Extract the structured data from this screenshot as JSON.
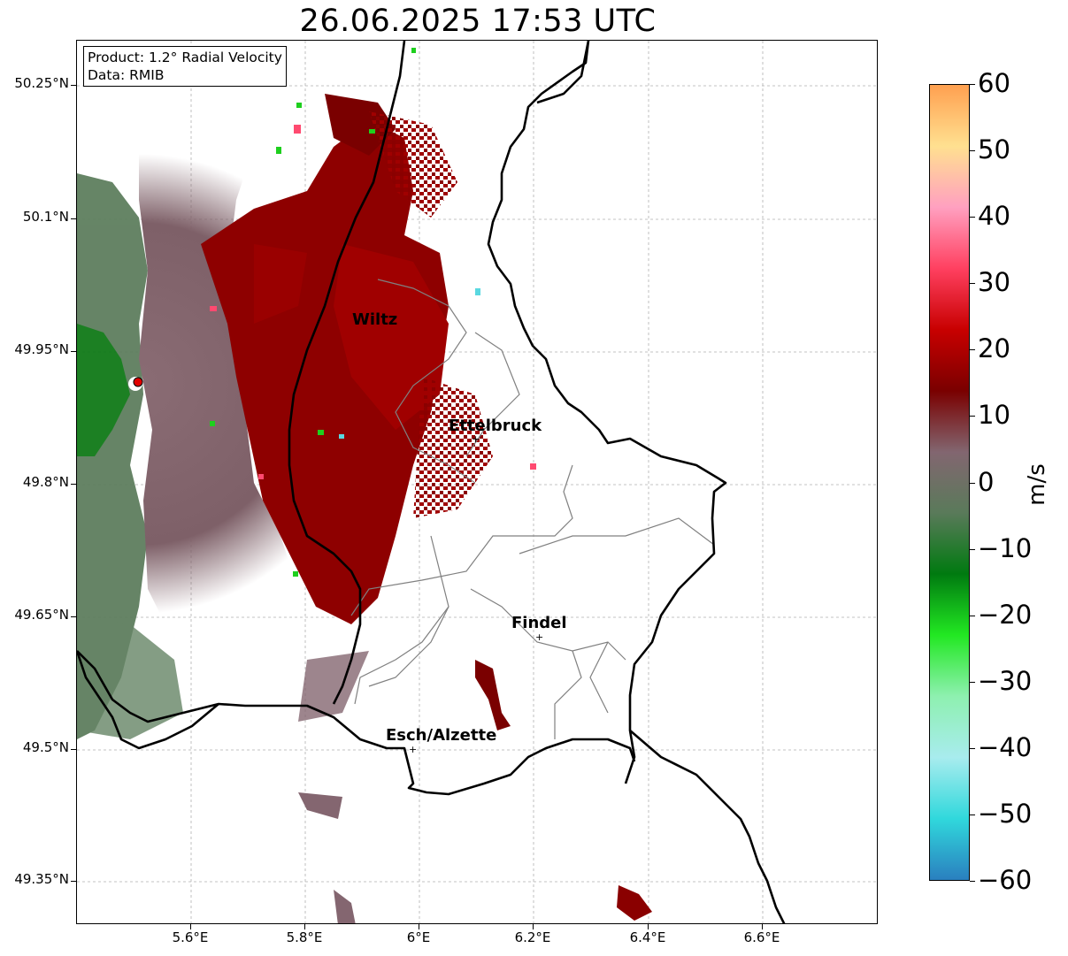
{
  "title": "26.06.2025 17:53 UTC",
  "info_box": {
    "product": "Product: 1.2° Radial Velocity",
    "data": "Data: RMIB"
  },
  "lat_ticks": [
    "50.25°N",
    "50.1°N",
    "49.95°N",
    "49.8°N",
    "49.65°N",
    "49.5°N",
    "49.35°N"
  ],
  "lon_ticks": [
    "5.6°E",
    "5.8°E",
    "6°E",
    "6.2°E",
    "6.4°E",
    "6.6°E"
  ],
  "cities": [
    {
      "name": "Wiltz"
    },
    {
      "name": "Ettelbruck"
    },
    {
      "name": "Findel"
    },
    {
      "name": "Esch/Alzette"
    }
  ],
  "colorbar": {
    "label": "m/s",
    "ticks": [
      "60",
      "50",
      "40",
      "30",
      "20",
      "10",
      "0",
      "−10",
      "−20",
      "−30",
      "−40",
      "−50",
      "−60"
    ],
    "range": [
      -60,
      60
    ],
    "colors": [
      "#2a7fbf",
      "#30d8dc",
      "#a8ecee",
      "#8ef0b0",
      "#22e822",
      "#007a10",
      "#5a7a5a",
      "#826670",
      "#7a0000",
      "#c80000",
      "#ff4060",
      "#ffa0c0",
      "#ffe090",
      "#ffa050"
    ]
  },
  "marker_icons": {
    "radar_site": "red-circle",
    "city": "plus-marker"
  }
}
